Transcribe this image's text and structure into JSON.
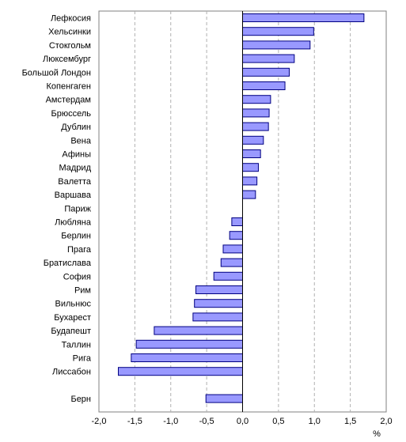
{
  "chart_data": {
    "type": "bar",
    "orientation": "horizontal",
    "categories": [
      "Лефкосия",
      "Хельсинки",
      "Стокгольм",
      "Люксембург",
      "Большой Лондон",
      "Копенгаген",
      "Амстердам",
      "Брюссель",
      "Дублин",
      "Вена",
      "Афины",
      "Мадрид",
      "Валетта",
      "Варшава",
      "Париж",
      "Любляна",
      "Берлин",
      "Прага",
      "Братислава",
      "София",
      "Рим",
      "Вильнюс",
      "Бухарест",
      "Будапешт",
      "Таллин",
      "Рига",
      "Лиссабон",
      "",
      "Берн"
    ],
    "values": [
      1.69,
      0.99,
      0.94,
      0.72,
      0.65,
      0.59,
      0.39,
      0.37,
      0.36,
      0.29,
      0.25,
      0.22,
      0.2,
      0.18,
      0.0,
      -0.15,
      -0.18,
      -0.27,
      -0.3,
      -0.4,
      -0.65,
      -0.67,
      -0.69,
      -1.23,
      -1.48,
      -1.55,
      -1.73,
      null,
      -0.51
    ],
    "x_ticks": [
      "-2,0",
      "-1,5",
      "-1,0",
      "-0,5",
      "0,0",
      "0,5",
      "1,0",
      "1,5",
      "2,0"
    ],
    "xlim": [
      -2.0,
      2.0
    ],
    "x_unit": "%",
    "grid": "vertical-dashed",
    "bar_color": "#9999ff",
    "bar_edge_color": "#000080"
  }
}
